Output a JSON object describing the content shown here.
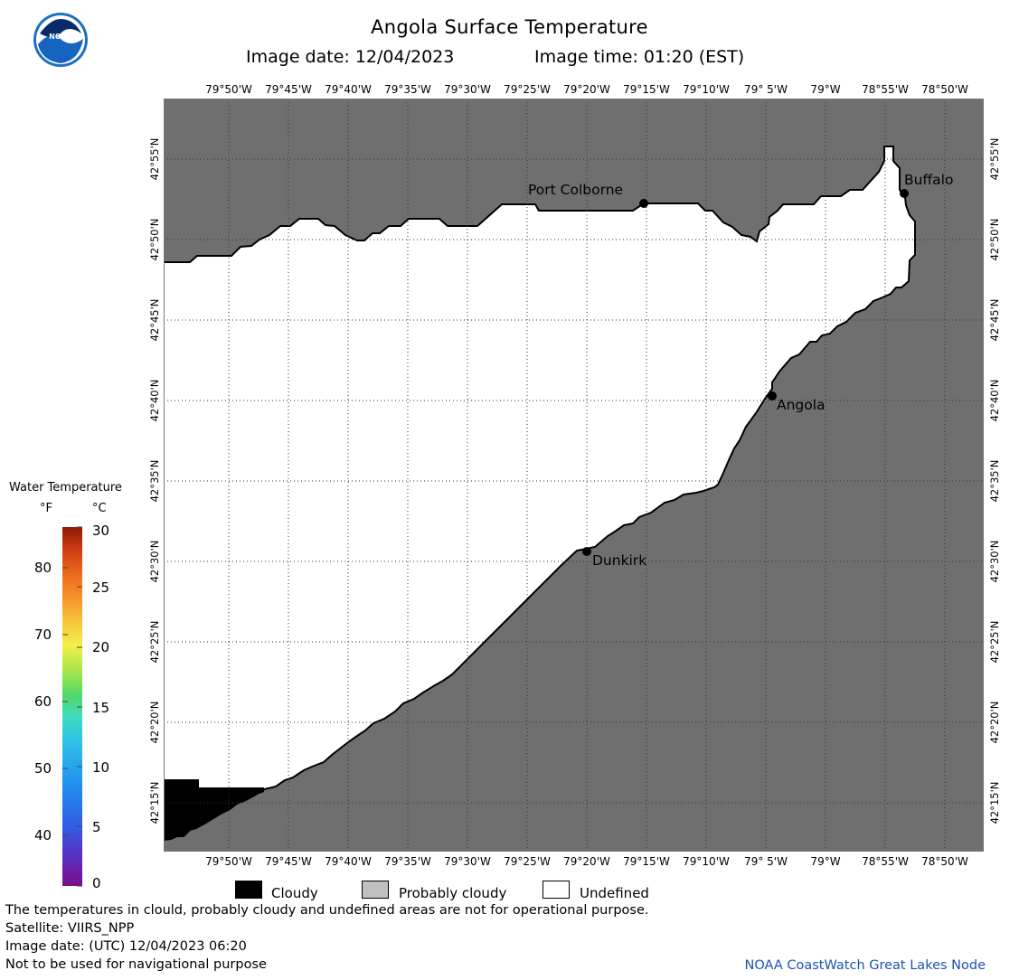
{
  "header": {
    "title": "Angola Surface Temperature",
    "date_line": "Image date: 12/04/2023",
    "time_line": "Image time: 01:20 (EST)"
  },
  "map": {
    "colors": {
      "land": "#6f6f6f",
      "undefined_water": "#ffffff",
      "cloudy": "#000000",
      "probably_cloudy": "#c0c0c0",
      "coastline": "#000000",
      "grid": "#444444"
    },
    "lon_labels": [
      "79°50'W",
      "79°45'W",
      "79°40'W",
      "79°35'W",
      "79°30'W",
      "79°25'W",
      "79°20'W",
      "79°15'W",
      "79°10'W",
      "79° 5'W",
      "79°W",
      "78°55'W",
      "78°50'W"
    ],
    "lat_labels": [
      "42°55'N",
      "42°50'N",
      "42°45'N",
      "42°40'N",
      "42°35'N",
      "42°30'N",
      "42°25'N",
      "42°20'N",
      "42°15'N"
    ],
    "cities": [
      {
        "name": "Port Colborne"
      },
      {
        "name": "Buffalo"
      },
      {
        "name": "Angola"
      },
      {
        "name": "Dunkirk"
      }
    ]
  },
  "legend": {
    "title": "Water Temperature",
    "unit_f": "°F",
    "unit_c": "°C",
    "f_ticks": [
      "80",
      "70",
      "60",
      "50",
      "40"
    ],
    "c_ticks": [
      "30",
      "25",
      "20",
      "15",
      "10",
      "5",
      "0"
    ],
    "scale_colors": [
      "#7b0d8c",
      "#5a2fc0",
      "#2f5fe6",
      "#1f8fef",
      "#2fc0e8",
      "#3fdcc0",
      "#4fd86a",
      "#a8e64a",
      "#f2f048",
      "#f7c23a",
      "#f7952a",
      "#ec6a1e",
      "#cc3a12",
      "#8c1a08"
    ]
  },
  "key": {
    "cloudy": "Cloudy",
    "probably_cloudy": "Probably cloudy",
    "undefined": "Undefined"
  },
  "footer": {
    "note": "The temperatures in clould, probably cloudy and undefined areas are not for operational purpose.",
    "satellite": "Satellite: VIIRS_NPP",
    "utc_date": "Image date: (UTC) 12/04/2023  06:20",
    "nav_note": "Not to be used for navigational purpose",
    "credit": "NOAA CoastWatch Great Lakes Node"
  }
}
